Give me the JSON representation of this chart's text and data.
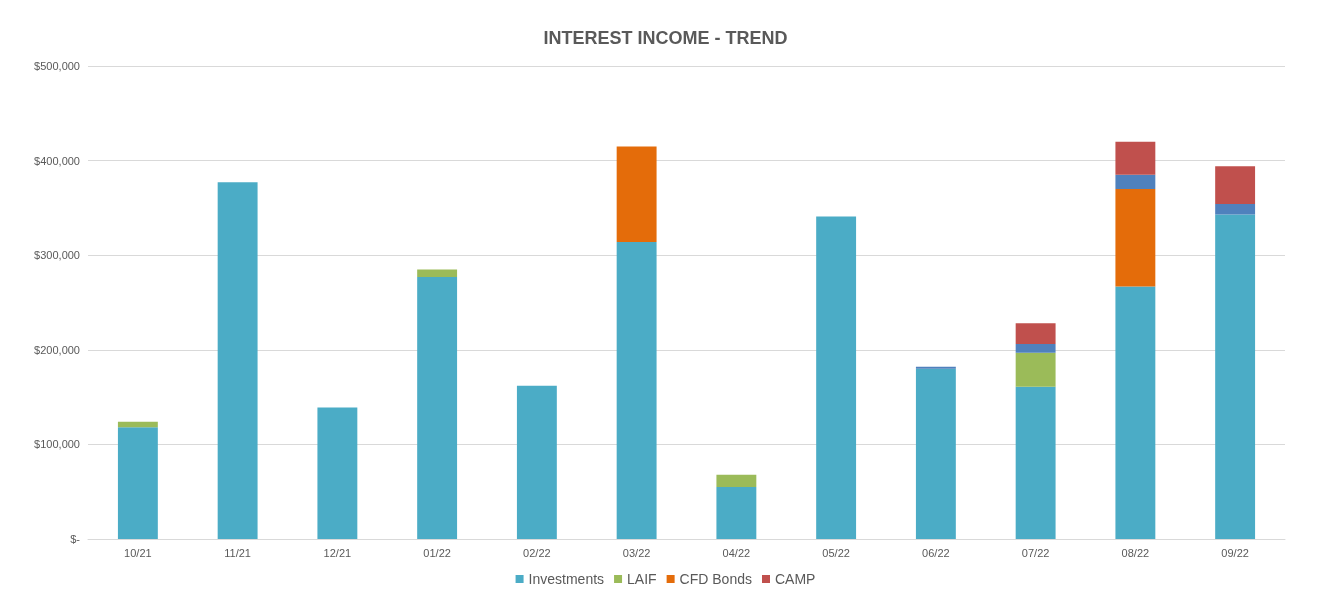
{
  "chart_data": {
    "type": "bar",
    "title": "INTEREST INCOME - TREND",
    "stacked": true,
    "categories": [
      "10/21",
      "11/21",
      "12/21",
      "01/22",
      "02/22",
      "03/22",
      "04/22",
      "05/22",
      "06/22",
      "07/22",
      "08/22",
      "09/22"
    ],
    "series": [
      {
        "name": "Investments",
        "color": "#4bacc6",
        "values": [
          118000,
          377000,
          139000,
          277000,
          162000,
          314000,
          55000,
          341000,
          180000,
          161000,
          267000,
          343000
        ]
      },
      {
        "name": "LAIF",
        "color": "#9bbb59",
        "values": [
          6000,
          null,
          null,
          8000,
          null,
          null,
          13000,
          null,
          null,
          36000,
          null,
          null
        ]
      },
      {
        "name": "CFD Bonds",
        "color": "#e46c0a",
        "values": [
          null,
          null,
          null,
          null,
          null,
          101000,
          null,
          null,
          null,
          null,
          103000,
          null
        ]
      },
      {
        "color": "#4f81bd",
        "values": [
          null,
          null,
          null,
          null,
          null,
          null,
          null,
          null,
          2000,
          9000,
          15000,
          11000
        ]
      },
      {
        "name": "CAMP",
        "color": "#c0504d",
        "values": [
          null,
          null,
          null,
          null,
          null,
          null,
          null,
          null,
          null,
          22000,
          35000,
          40000
        ]
      }
    ],
    "ylim": [
      0,
      500000
    ],
    "yticks": [
      {
        "value": 0,
        "label": "$-"
      },
      {
        "value": 100000,
        "label": "$100,000"
      },
      {
        "value": 200000,
        "label": "$200,000"
      },
      {
        "value": 300000,
        "label": "$300,000"
      },
      {
        "value": 400000,
        "label": "$400,000"
      },
      {
        "value": 500000,
        "label": "$500,000"
      }
    ],
    "grid": "y",
    "legend": "bottom"
  }
}
